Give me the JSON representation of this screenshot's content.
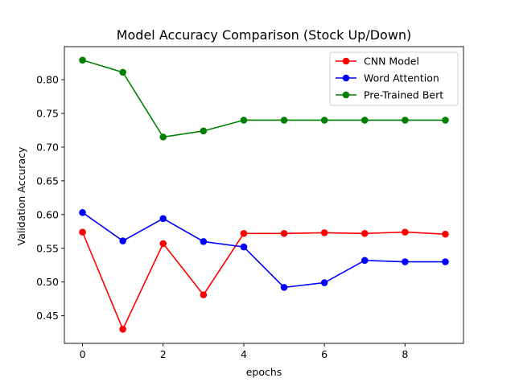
{
  "chart_data": {
    "type": "line",
    "title": "Model Accuracy Comparison (Stock Up/Down)",
    "xlabel": "epochs",
    "ylabel": "Validation Accuracy",
    "x": [
      0,
      1,
      2,
      3,
      4,
      5,
      6,
      7,
      8,
      9
    ],
    "xlim": [
      -0.45,
      9.45
    ],
    "ylim": [
      0.409,
      0.849
    ],
    "xticks": [
      0,
      2,
      4,
      6,
      8
    ],
    "yticks": [
      0.45,
      0.5,
      0.55,
      0.6,
      0.65,
      0.7,
      0.75,
      0.8
    ],
    "xtick_labels": [
      "0",
      "2",
      "4",
      "6",
      "8"
    ],
    "ytick_labels": [
      "0.45",
      "0.50",
      "0.55",
      "0.60",
      "0.65",
      "0.70",
      "0.75",
      "0.80"
    ],
    "grid": false,
    "legend_position": "top-right",
    "series": [
      {
        "name": "CNN Model",
        "color": "#ff0000",
        "values": [
          0.574,
          0.43,
          0.557,
          0.481,
          0.572,
          0.572,
          0.573,
          0.572,
          0.574,
          0.571
        ]
      },
      {
        "name": "Word Attention",
        "color": "#0000ff",
        "values": [
          0.603,
          0.561,
          0.594,
          0.56,
          0.552,
          0.492,
          0.499,
          0.532,
          0.53,
          0.53
        ]
      },
      {
        "name": "Pre-Trained Bert",
        "color": "#008000",
        "values": [
          0.829,
          0.811,
          0.715,
          0.724,
          0.74,
          0.74,
          0.74,
          0.74,
          0.74,
          0.74
        ]
      }
    ]
  }
}
